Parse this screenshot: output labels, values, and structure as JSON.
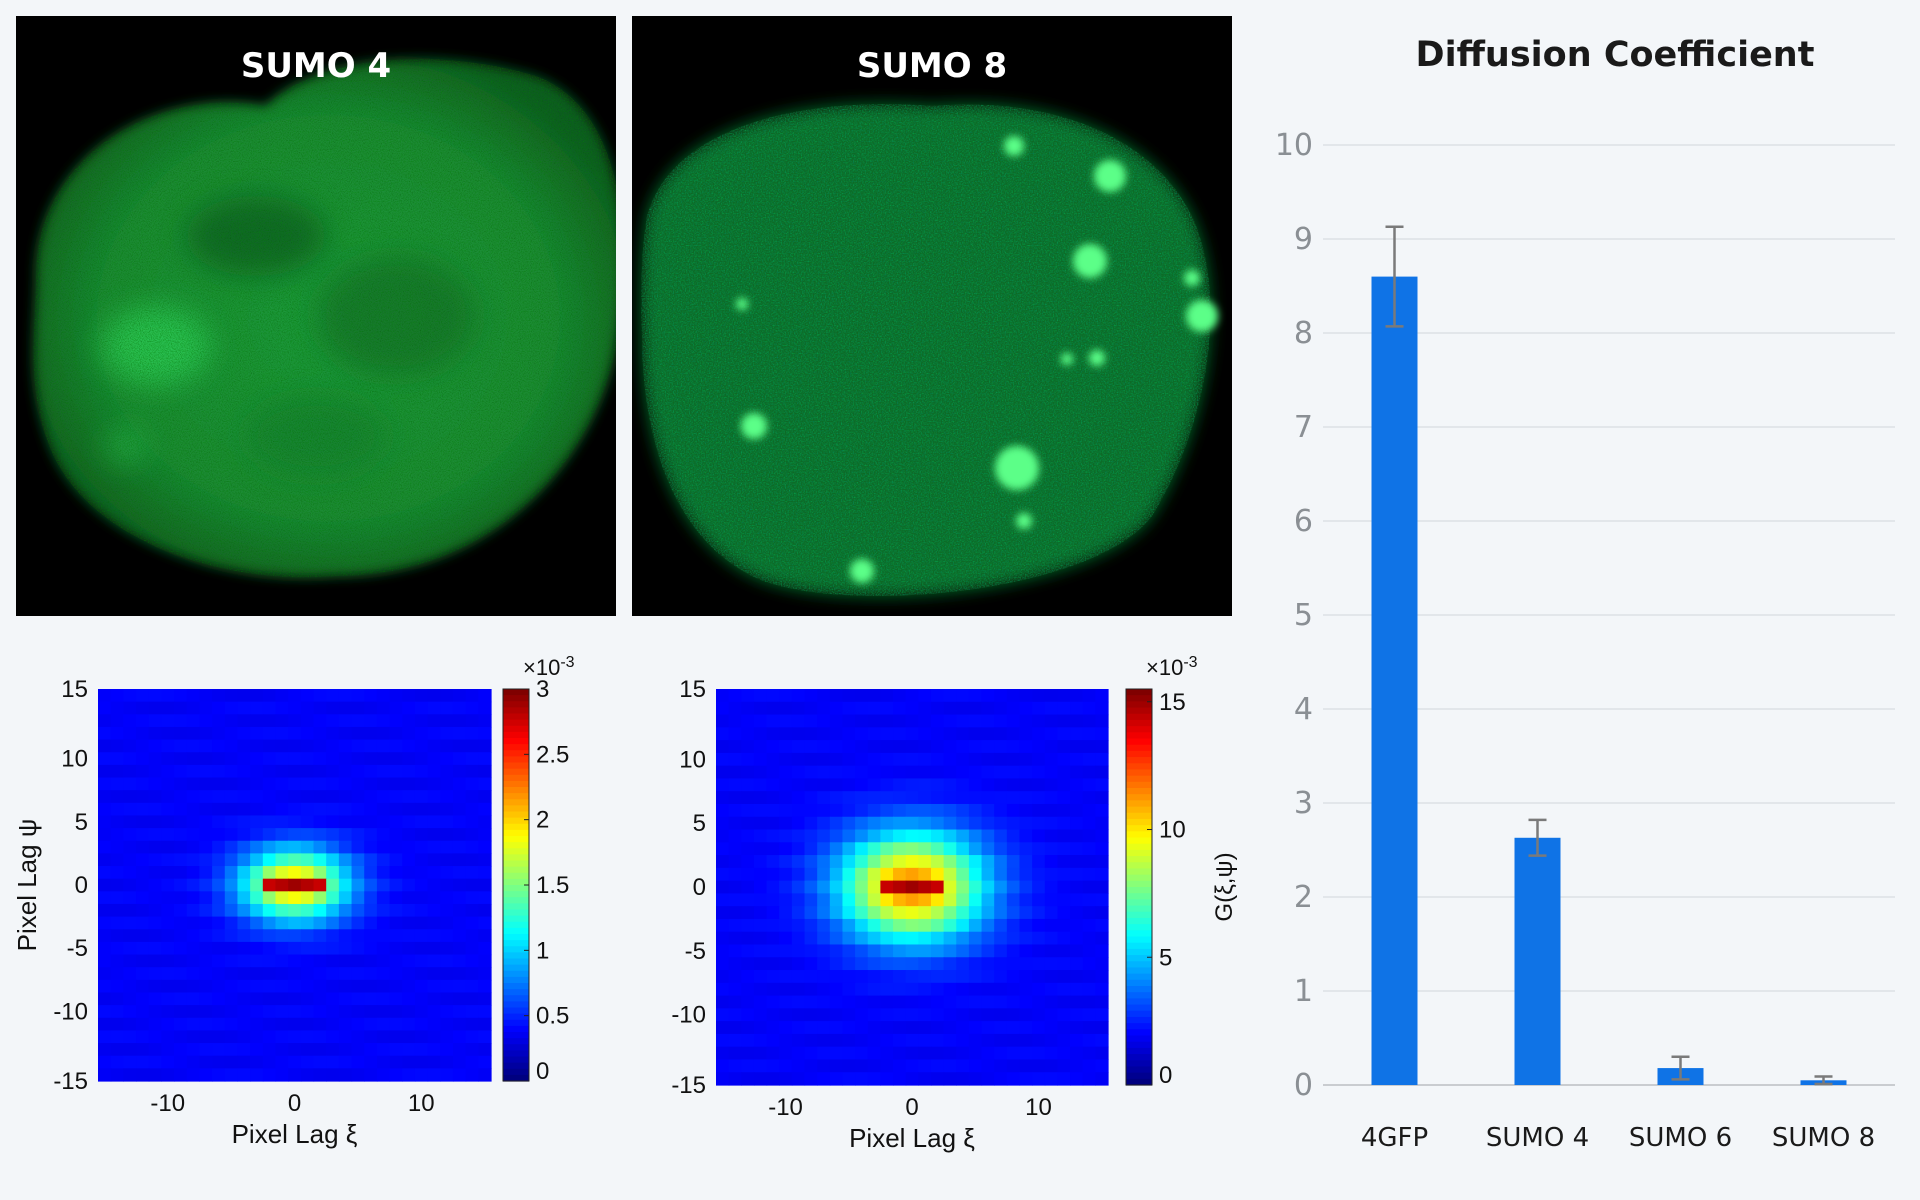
{
  "images": [
    {
      "title": "SUMO 4"
    },
    {
      "title": "SUMO 8"
    }
  ],
  "acf_plots": [
    {
      "exponent_label": "×10",
      "exponent_power": "-3",
      "colorbar_ticks": [
        "3",
        "2.5",
        "2",
        "1.5",
        "1",
        "0.5",
        "0"
      ],
      "colorbar_values": [
        3,
        2.5,
        2,
        1.5,
        1,
        0.5,
        0
      ],
      "colorbar_max": 3,
      "y_ticks": [
        "15",
        "10",
        "5",
        "0",
        "-5",
        "-10",
        "-15"
      ],
      "x_ticks": [
        "-10",
        "0",
        "10"
      ],
      "xlabel": "Pixel Lag ξ",
      "ylabel": "Pixel Lag ψ",
      "colorbar_label": ""
    },
    {
      "exponent_label": "×10",
      "exponent_power": "-3",
      "colorbar_ticks": [
        "15",
        "10",
        "5",
        "0"
      ],
      "colorbar_values": [
        15,
        10,
        5,
        0
      ],
      "colorbar_max": 15.5,
      "y_ticks": [
        "15",
        "10",
        "5",
        "0",
        "-5",
        "-10",
        "-15"
      ],
      "x_ticks": [
        "-10",
        "0",
        "10"
      ],
      "xlabel": "Pixel Lag ξ",
      "ylabel": "",
      "colorbar_label": "G(ξ,ψ)"
    }
  ],
  "chart_data": {
    "type": "bar",
    "title": "Diffusion Coefficient",
    "categories": [
      "4GFP",
      "SUMO 4",
      "SUMO 6",
      "SUMO 8"
    ],
    "values": [
      8.6,
      2.63,
      0.18,
      0.05
    ],
    "errors": [
      0.53,
      0.19,
      0.12,
      0.04
    ],
    "ylim": [
      0,
      10
    ],
    "yticks": [
      "0",
      "1",
      "2",
      "3",
      "4",
      "5",
      "6",
      "7",
      "8",
      "9",
      "10"
    ],
    "xlabel": "",
    "ylabel": "",
    "grid": true,
    "bar_color": "#0f73e6",
    "error_color": "#7a7a7a"
  }
}
